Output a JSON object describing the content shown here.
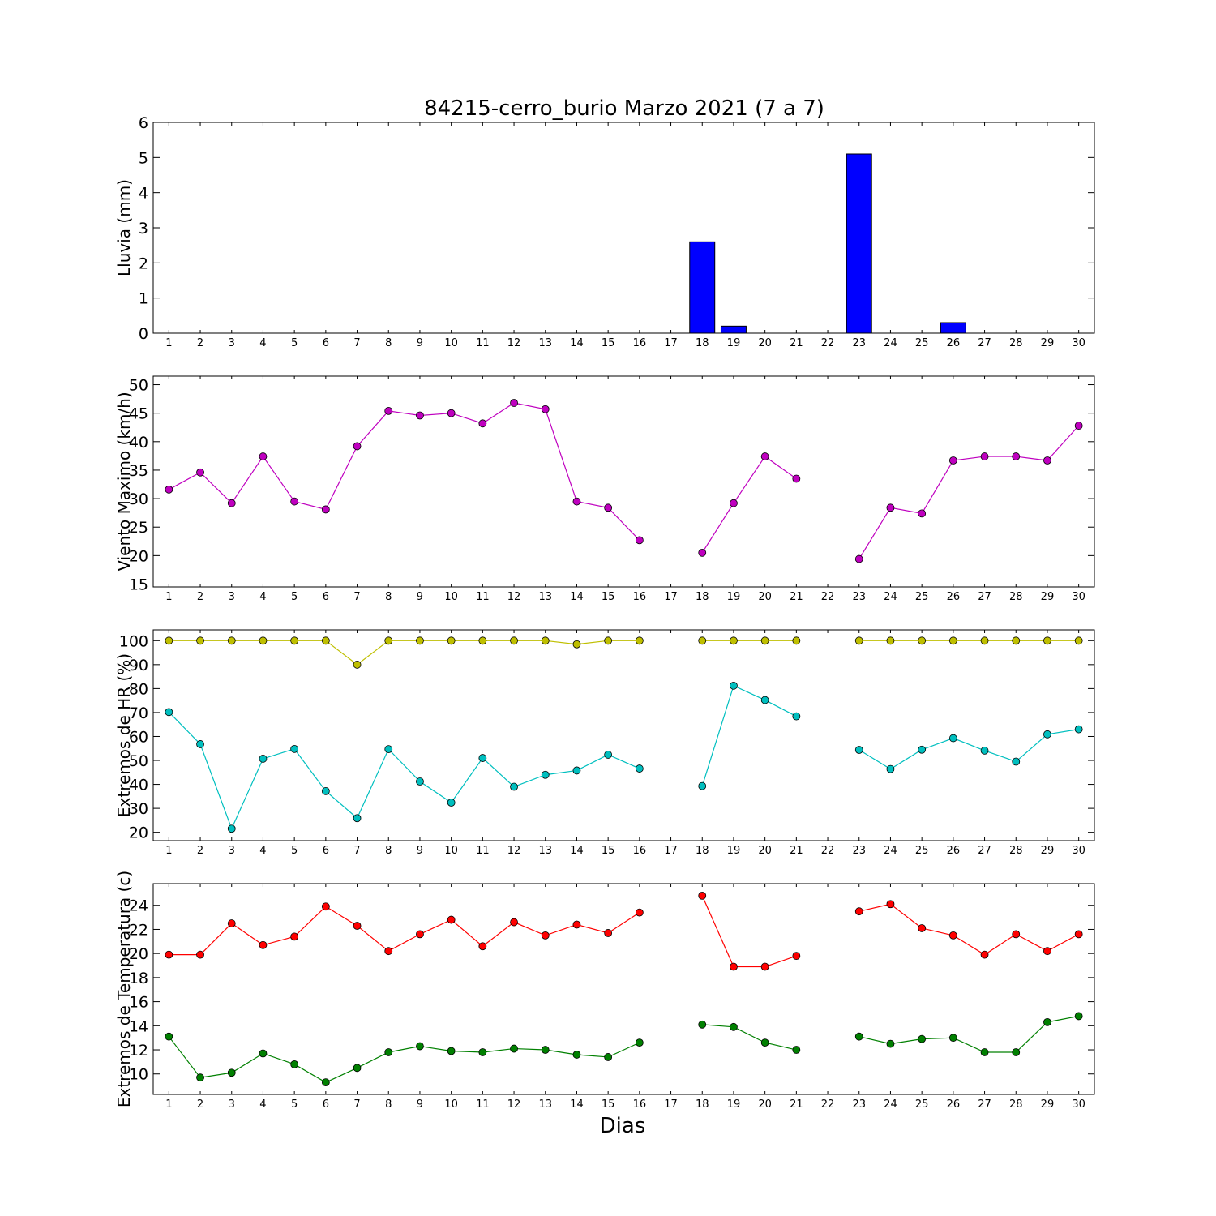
{
  "figure": {
    "title": "84215-cerro_burio Marzo 2021  (7 a 7)",
    "xlabel": "Dias"
  },
  "colors": {
    "rain": "#0000ff",
    "wind": "#bf00bf",
    "hr_max": "#bfbf00",
    "hr_min": "#00bfbf",
    "temp_max": "#ff0000",
    "temp_min": "#008000"
  },
  "chart_data": [
    {
      "type": "bar",
      "ylabel": "Lluvia (mm)",
      "x": [
        1,
        2,
        3,
        4,
        5,
        6,
        7,
        8,
        9,
        10,
        11,
        12,
        13,
        14,
        15,
        16,
        17,
        18,
        19,
        20,
        21,
        22,
        23,
        24,
        25,
        26,
        27,
        28,
        29,
        30
      ],
      "xlim": [
        0.5,
        30.5
      ],
      "ylim": [
        0,
        6
      ],
      "yticks": [
        0,
        1,
        2,
        3,
        4,
        5,
        6
      ],
      "series": [
        {
          "values": [
            0,
            0,
            0,
            0,
            0,
            0,
            0,
            0,
            0,
            0,
            0,
            0,
            0,
            0,
            0,
            0,
            null,
            2.6,
            0.2,
            0,
            0,
            null,
            5.1,
            0,
            0,
            0.3,
            0,
            0,
            0,
            0
          ]
        }
      ]
    },
    {
      "type": "line",
      "ylabel": "Viento Maximo (km/h)",
      "x": [
        1,
        2,
        3,
        4,
        5,
        6,
        7,
        8,
        9,
        10,
        11,
        12,
        13,
        14,
        15,
        16,
        17,
        18,
        19,
        20,
        21,
        22,
        23,
        24,
        25,
        26,
        27,
        28,
        29,
        30
      ],
      "xlim": [
        0.5,
        30.5
      ],
      "ylim": [
        14.5,
        51.5
      ],
      "yticks": [
        15,
        20,
        25,
        30,
        35,
        40,
        45,
        50
      ],
      "series": [
        {
          "values": [
            31.6,
            34.6,
            29.2,
            37.4,
            29.5,
            28.1,
            39.2,
            45.4,
            44.6,
            45.0,
            43.2,
            46.8,
            45.7,
            29.5,
            28.4,
            22.7,
            null,
            20.5,
            29.2,
            37.4,
            33.5,
            null,
            19.4,
            28.4,
            27.4,
            36.7,
            37.4,
            37.4,
            36.7,
            42.8
          ]
        }
      ]
    },
    {
      "type": "line",
      "ylabel": "Extremos de HR (%)",
      "x": [
        1,
        2,
        3,
        4,
        5,
        6,
        7,
        8,
        9,
        10,
        11,
        12,
        13,
        14,
        15,
        16,
        17,
        18,
        19,
        20,
        21,
        22,
        23,
        24,
        25,
        26,
        27,
        28,
        29,
        30
      ],
      "xlim": [
        0.5,
        30.5
      ],
      "ylim": [
        16.5,
        104.5
      ],
      "yticks": [
        20,
        30,
        40,
        50,
        60,
        70,
        80,
        90,
        100
      ],
      "series": [
        {
          "values": [
            100,
            100,
            100,
            100,
            100,
            100,
            90,
            100,
            100,
            100,
            100,
            100,
            100,
            98.5,
            100,
            100,
            null,
            100,
            100,
            100,
            100,
            null,
            100,
            100,
            100,
            100,
            100,
            100,
            100,
            100
          ]
        },
        {
          "values": [
            70.2,
            56.8,
            21.5,
            50.7,
            54.8,
            37.2,
            25.9,
            54.7,
            41.2,
            32.4,
            51.0,
            39.0,
            44.0,
            45.8,
            52.4,
            46.6,
            null,
            39.3,
            81.2,
            75.2,
            68.4,
            null,
            54.4,
            46.4,
            54.5,
            59.3,
            54.1,
            49.5,
            60.9,
            63.0
          ]
        }
      ]
    },
    {
      "type": "line",
      "ylabel": "Extremos de Temperatura (c)",
      "x": [
        1,
        2,
        3,
        4,
        5,
        6,
        7,
        8,
        9,
        10,
        11,
        12,
        13,
        14,
        15,
        16,
        17,
        18,
        19,
        20,
        21,
        22,
        23,
        24,
        25,
        26,
        27,
        28,
        29,
        30
      ],
      "xlim": [
        0.5,
        30.5
      ],
      "ylim": [
        8.3,
        25.8
      ],
      "yticks": [
        10,
        12,
        14,
        16,
        18,
        20,
        22,
        24
      ],
      "series": [
        {
          "values": [
            19.9,
            19.9,
            22.5,
            20.7,
            21.4,
            23.9,
            22.3,
            20.2,
            21.6,
            22.8,
            20.6,
            22.6,
            21.5,
            22.4,
            21.7,
            23.4,
            null,
            24.8,
            18.9,
            18.9,
            19.8,
            null,
            23.5,
            24.1,
            22.1,
            21.5,
            19.9,
            21.6,
            20.2,
            21.6
          ]
        },
        {
          "values": [
            13.1,
            9.7,
            10.1,
            11.7,
            10.8,
            9.3,
            10.5,
            11.8,
            12.3,
            11.9,
            11.8,
            12.1,
            12.0,
            11.6,
            11.4,
            12.6,
            null,
            14.1,
            13.9,
            12.6,
            12.0,
            null,
            13.1,
            12.5,
            12.9,
            13.0,
            11.8,
            11.8,
            14.3,
            14.8
          ]
        }
      ]
    }
  ]
}
